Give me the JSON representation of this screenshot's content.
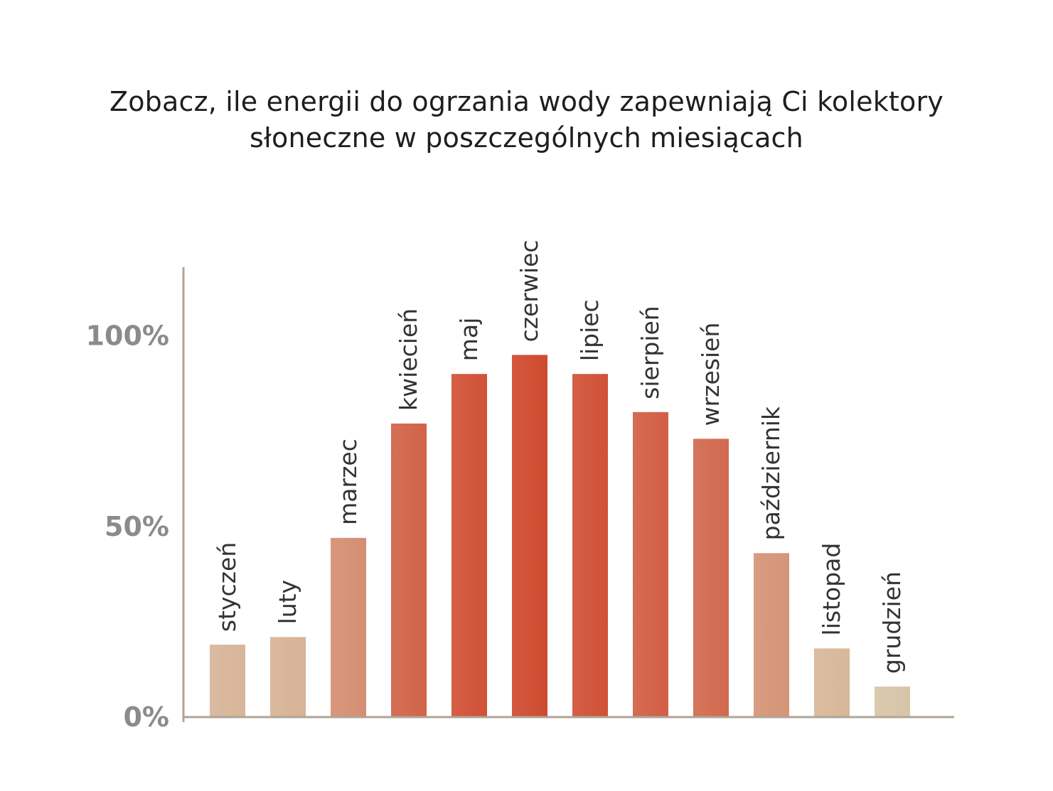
{
  "chart_data": {
    "type": "bar",
    "title_lines": [
      "Zobacz, ile energii do ogrzania wody zapewniają Ci kolektory",
      "słoneczne w poszczególnych miesiącach"
    ],
    "categories": [
      "styczeń",
      "luty",
      "marzec",
      "kwiecień",
      "maj",
      "czerwiec",
      "lipiec",
      "sierpień",
      "wrzesień",
      "październik",
      "listopad",
      "grudzień"
    ],
    "values": [
      19,
      21,
      47,
      77,
      90,
      95,
      90,
      80,
      73,
      43,
      18,
      8
    ],
    "value_unit": "%",
    "xlabel": "",
    "ylabel": "",
    "yticks": [
      {
        "value": 0,
        "label": "0%"
      },
      {
        "value": 50,
        "label": "50%"
      },
      {
        "value": 100,
        "label": "100%"
      }
    ],
    "ylim": [
      0,
      118
    ],
    "grid": false,
    "legend": "none",
    "colors": {
      "axis": "#b0a595",
      "low": "#d8c5a8",
      "high": "#cf4a2f",
      "tick_text": "#8e8a8a",
      "label_text": "#333333",
      "title_text": "#1e1e1e"
    }
  }
}
